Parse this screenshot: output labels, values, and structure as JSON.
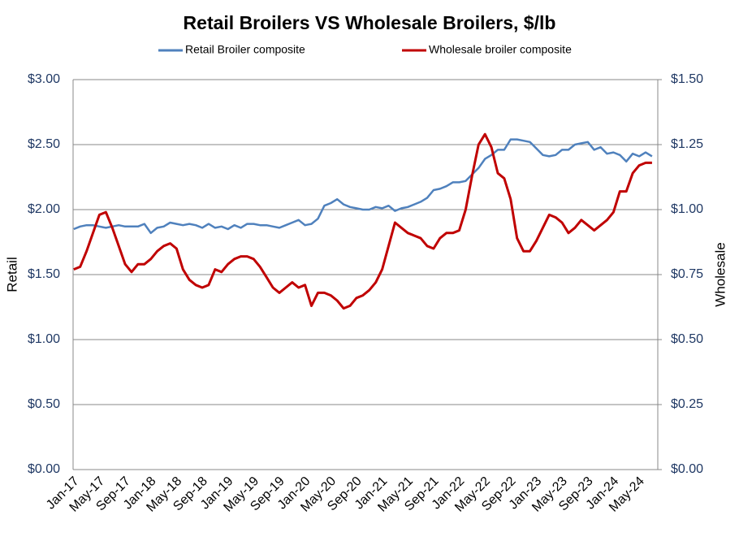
{
  "chart_data": {
    "type": "line",
    "title": "Retail Broilers VS Wholesale Broilers, $/lb",
    "ylabel": "Retail",
    "y2label": "Wholesale",
    "categories": [
      "Jan-17",
      null,
      null,
      null,
      "May-17",
      null,
      null,
      null,
      "Sep-17",
      null,
      null,
      null,
      "Jan-18",
      null,
      null,
      null,
      "May-18",
      null,
      null,
      null,
      "Sep-18",
      null,
      null,
      null,
      "Jan-19",
      null,
      null,
      null,
      "May-19",
      null,
      null,
      null,
      "Sep-19",
      null,
      null,
      null,
      "Jan-20",
      null,
      null,
      null,
      "May-20",
      null,
      null,
      null,
      "Sep-20",
      null,
      null,
      null,
      "Jan-21",
      null,
      null,
      null,
      "May-21",
      null,
      null,
      null,
      "Sep-21",
      null,
      null,
      null,
      "Jan-22",
      null,
      null,
      null,
      "May-22",
      null,
      null,
      null,
      "Sep-22",
      null,
      null,
      null,
      "Jan-23",
      null,
      null,
      null,
      "May-23",
      null,
      null,
      null,
      "Sep-23",
      null,
      null,
      null,
      "Jan-24",
      null,
      null,
      null,
      "May-24",
      null,
      null
    ],
    "series": [
      {
        "name": "Retail Broiler composite",
        "color": "#4f81bd",
        "axis": "y",
        "values": [
          1.85,
          1.87,
          1.88,
          1.88,
          1.87,
          1.86,
          1.87,
          1.88,
          1.87,
          1.87,
          1.87,
          1.89,
          1.82,
          1.86,
          1.87,
          1.9,
          1.89,
          1.88,
          1.89,
          1.88,
          1.86,
          1.89,
          1.86,
          1.87,
          1.85,
          1.88,
          1.86,
          1.89,
          1.89,
          1.88,
          1.88,
          1.87,
          1.86,
          1.88,
          1.9,
          1.92,
          1.88,
          1.89,
          1.93,
          2.03,
          2.05,
          2.08,
          2.04,
          2.02,
          2.01,
          2.0,
          2.0,
          2.02,
          2.01,
          2.03,
          1.99,
          2.01,
          2.02,
          2.04,
          2.06,
          2.09,
          2.15,
          2.16,
          2.18,
          2.21,
          2.21,
          2.22,
          2.27,
          2.32,
          2.39,
          2.42,
          2.46,
          2.46,
          2.54,
          2.54,
          2.53,
          2.52,
          2.47,
          2.42,
          2.41,
          2.42,
          2.46,
          2.46,
          2.5,
          2.51,
          2.52,
          2.46,
          2.48,
          2.43,
          2.44,
          2.42,
          2.37,
          2.43,
          2.41,
          2.44,
          2.41
        ]
      },
      {
        "name": "Wholesale broiler composite",
        "color": "#c00000",
        "axis": "y2",
        "values": [
          0.77,
          0.78,
          0.84,
          0.91,
          0.98,
          0.99,
          0.93,
          0.86,
          0.79,
          0.76,
          0.79,
          0.79,
          0.81,
          0.84,
          0.86,
          0.87,
          0.85,
          0.77,
          0.73,
          0.71,
          0.7,
          0.71,
          0.77,
          0.76,
          0.79,
          0.81,
          0.82,
          0.82,
          0.81,
          0.78,
          0.74,
          0.7,
          0.68,
          0.7,
          0.72,
          0.7,
          0.71,
          0.63,
          0.68,
          0.68,
          0.67,
          0.65,
          0.62,
          0.63,
          0.66,
          0.67,
          0.69,
          0.72,
          0.77,
          0.86,
          0.95,
          0.93,
          0.91,
          0.9,
          0.89,
          0.86,
          0.85,
          0.89,
          0.91,
          0.91,
          0.92,
          1.0,
          1.13,
          1.25,
          1.29,
          1.24,
          1.14,
          1.12,
          1.04,
          0.89,
          0.84,
          0.84,
          0.88,
          0.93,
          0.98,
          0.97,
          0.95,
          0.91,
          0.93,
          0.96,
          0.94,
          0.92,
          0.94,
          0.96,
          0.99,
          1.07,
          1.07,
          1.14,
          1.17,
          1.18,
          1.18
        ]
      }
    ],
    "ylim": [
      0,
      3
    ],
    "yticks": [
      {
        "value": 0,
        "label": "$0.00"
      },
      {
        "value": 0.5,
        "label": "$0.50"
      },
      {
        "value": 1,
        "label": "$1.00"
      },
      {
        "value": 1.5,
        "label": "$1.50"
      },
      {
        "value": 2,
        "label": "$2.00"
      },
      {
        "value": 2.5,
        "label": "$2.50"
      },
      {
        "value": 3,
        "label": "$3.00"
      }
    ],
    "y2lim": [
      0,
      1.5
    ],
    "y2ticks": [
      {
        "value": 0,
        "label": "$0.00"
      },
      {
        "value": 0.25,
        "label": "$0.25"
      },
      {
        "value": 0.5,
        "label": "$0.50"
      },
      {
        "value": 0.75,
        "label": "$0.75"
      },
      {
        "value": 1,
        "label": "$1.00"
      },
      {
        "value": 1.25,
        "label": "$1.25"
      },
      {
        "value": 1.5,
        "label": "$1.50"
      }
    ],
    "grid": true,
    "legend": "top"
  }
}
